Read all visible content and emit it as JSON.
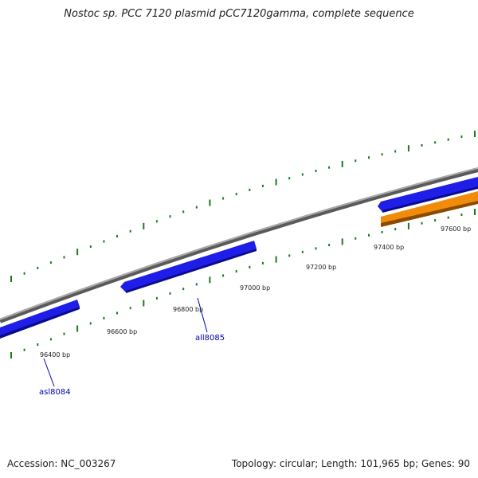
{
  "title": "Nostoc sp. PCC 7120 plasmid pCC7120gamma, complete sequence",
  "footer": {
    "accession": "Accession: NC_003267",
    "topology": "Topology: circular; Length: 101,965 bp; Genes: 90"
  },
  "map": {
    "backbone_color": "#888888",
    "tick_color": "#1a7a1a",
    "gene_color_forward": "#1e1ee8",
    "gene_color_other": "#f08c0a",
    "tick_labels": [
      "96400 bp",
      "96600 bp",
      "96800 bp",
      "97000 bp",
      "97200 bp",
      "97400 bp",
      "97600 bp"
    ],
    "gene_labels": [
      {
        "id": "asl8084",
        "label": "asl8084"
      },
      {
        "id": "all8085",
        "label": "all8085"
      }
    ]
  }
}
